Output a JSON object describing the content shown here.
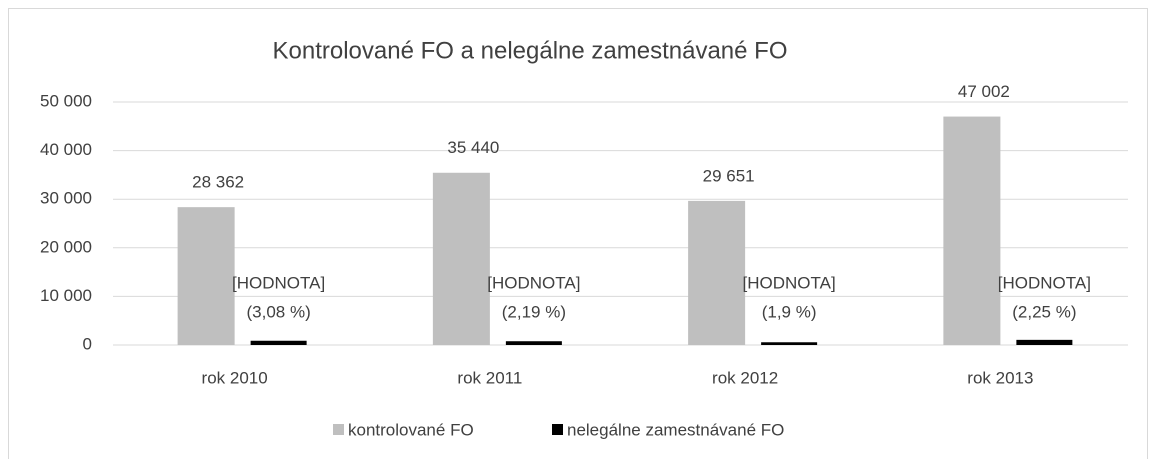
{
  "chart_data": {
    "type": "bar",
    "title": "Kontrolované FO a nelegálne zamestnávané FO",
    "categories": [
      "rok 2010",
      "rok 2011",
      "rok 2012",
      "rok 2013"
    ],
    "series": [
      {
        "name": "kontrolované FO",
        "color": "#bfbfbf",
        "values": [
          28362,
          35440,
          29651,
          47002
        ],
        "value_labels": [
          "28 362",
          "35 440",
          "29 651",
          "47 002"
        ]
      },
      {
        "name": "nelegálne zamestnávané FO",
        "color": "#000000",
        "values": [
          874,
          776,
          563,
          1058
        ],
        "value_labels": [
          [
            "[HODNOTA]",
            "(3,08 %)"
          ],
          [
            "[HODNOTA]",
            "(2,19 %)"
          ],
          [
            "[HODNOTA]",
            "(1,9 %)"
          ],
          [
            "[HODNOTA]",
            "(2,25 %)"
          ]
        ]
      }
    ],
    "ylim": [
      0,
      50000
    ],
    "yticks": [
      0,
      {
        "value": 10000,
        "label": "10 000"
      },
      {
        "value": 20000,
        "label": "20 000"
      },
      {
        "value": 30000,
        "label": "30 000"
      },
      {
        "value": 40000,
        "label": "40 000"
      },
      {
        "value": 50000,
        "label": "50 000"
      }
    ],
    "grid": true,
    "legend": "bottom"
  }
}
